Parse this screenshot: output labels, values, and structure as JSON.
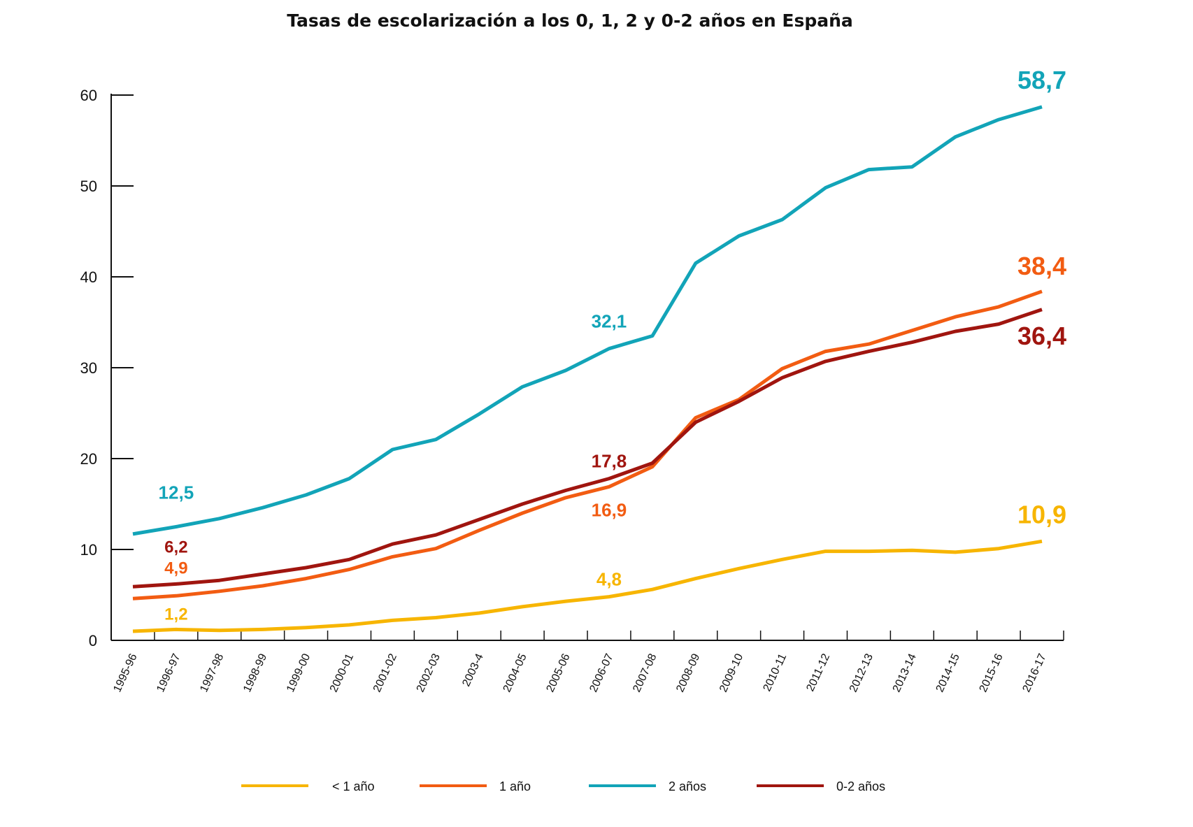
{
  "chart_data": {
    "type": "line",
    "title": "Tasas de escolarización a los 0, 1, 2 y 0-2 años en España",
    "xlabel": "",
    "ylabel": "",
    "ylim": [
      0,
      60
    ],
    "yticks": [
      0,
      10,
      20,
      30,
      40,
      50,
      60
    ],
    "grid": false,
    "legend": "bottom",
    "categories": [
      "1995-96",
      "1996-97",
      "1997-98",
      "1998-99",
      "1999-00",
      "2000-01",
      "2001-02",
      "2002-03",
      "2003-4",
      "2004-05",
      "2005-06",
      "2006-07",
      "2007-08",
      "2008-09",
      "2009-10",
      "2010-11",
      "2011-12",
      "2012-13",
      "2013-14",
      "2014-15",
      "2015-16",
      "2016-17"
    ],
    "series": [
      {
        "name": "< 1 año",
        "color": "#f7b500",
        "values": [
          1.0,
          1.2,
          1.1,
          1.2,
          1.4,
          1.7,
          2.2,
          2.5,
          3.0,
          3.7,
          4.3,
          4.8,
          5.6,
          6.8,
          7.9,
          8.9,
          9.8,
          9.8,
          9.9,
          9.7,
          10.1,
          10.9
        ]
      },
      {
        "name": "1 año",
        "color": "#f25c12",
        "values": [
          4.6,
          4.9,
          5.4,
          6.0,
          6.8,
          7.8,
          9.2,
          10.1,
          12.1,
          14.0,
          15.7,
          16.9,
          19.1,
          24.5,
          26.5,
          29.9,
          31.8,
          32.6,
          34.1,
          35.6,
          36.7,
          38.4
        ]
      },
      {
        "name": "2 años",
        "color": "#12a4b8",
        "values": [
          11.7,
          12.5,
          13.4,
          14.6,
          16.0,
          17.8,
          21.0,
          22.1,
          24.9,
          27.9,
          29.7,
          32.1,
          33.5,
          41.5,
          44.5,
          46.3,
          49.8,
          51.8,
          52.1,
          55.4,
          57.3,
          58.7
        ]
      },
      {
        "name": "0-2 años",
        "color": "#a0150f",
        "values": [
          5.9,
          6.2,
          6.6,
          7.3,
          8.0,
          8.9,
          10.6,
          11.6,
          13.3,
          15.0,
          16.5,
          17.8,
          19.5,
          24.0,
          26.3,
          28.9,
          30.7,
          31.8,
          32.8,
          34.0,
          34.8,
          36.4
        ]
      }
    ],
    "annotations": [
      {
        "series": 2,
        "index": 1,
        "text": "12,5"
      },
      {
        "series": 3,
        "index": 1,
        "text": "6,2"
      },
      {
        "series": 1,
        "index": 1,
        "text": "4,9"
      },
      {
        "series": 0,
        "index": 1,
        "text": "1,2"
      },
      {
        "series": 2,
        "index": 11,
        "text": "32,1"
      },
      {
        "series": 3,
        "index": 11,
        "text": "17,8"
      },
      {
        "series": 1,
        "index": 11,
        "text": "16,9"
      },
      {
        "series": 0,
        "index": 11,
        "text": "4,8"
      },
      {
        "series": 2,
        "index": 21,
        "text": "58,7"
      },
      {
        "series": 1,
        "index": 21,
        "text": "38,4"
      },
      {
        "series": 3,
        "index": 21,
        "text": "36,4"
      },
      {
        "series": 0,
        "index": 21,
        "text": "10,9"
      }
    ]
  }
}
